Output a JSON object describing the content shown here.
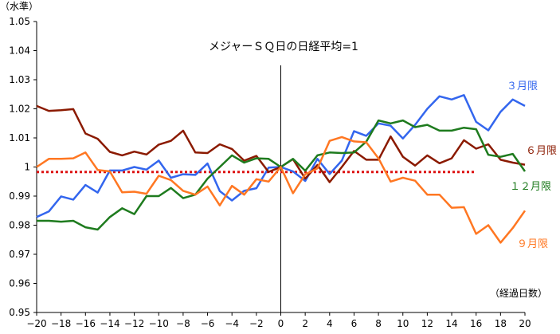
{
  "chart_data": {
    "type": "line",
    "title": "メジャーＳＱ日の日経平均=1",
    "ylabel": "（水準）",
    "xlabel": "（経過日数）",
    "xlim": [
      -20,
      20
    ],
    "ylim": [
      0.95,
      1.05
    ],
    "x_ticks": [
      -20,
      -18,
      -16,
      -14,
      -12,
      -10,
      -8,
      -6,
      -4,
      -2,
      0,
      2,
      4,
      6,
      8,
      10,
      12,
      14,
      16,
      18,
      20
    ],
    "y_ticks": [
      0.95,
      0.96,
      0.97,
      0.98,
      0.99,
      1,
      1.01,
      1.02,
      1.03,
      1.04,
      1.05
    ],
    "y_tick_labels": [
      "0.95",
      "0.96",
      "0.97",
      "0.98",
      "0.99",
      "1",
      "1.01",
      "1.02",
      "1.03",
      "1.04",
      "1.05"
    ],
    "x": [
      -20,
      -19,
      -18,
      -17,
      -16,
      -15,
      -14,
      -13,
      -12,
      -11,
      -10,
      -9,
      -8,
      -7,
      -6,
      -5,
      -4,
      -3,
      -2,
      -1,
      0,
      1,
      2,
      3,
      4,
      5,
      6,
      7,
      8,
      9,
      10,
      11,
      12,
      13,
      14,
      15,
      16,
      17,
      18,
      19,
      20
    ],
    "series": [
      {
        "name": "３月限",
        "color": "#3366ee",
        "values": [
          0.9828,
          0.9847,
          0.9899,
          0.9888,
          0.9938,
          0.9912,
          0.9988,
          0.9988,
          1.0,
          0.9991,
          1.0022,
          0.9963,
          0.9975,
          0.9973,
          1.0012,
          0.9917,
          0.9885,
          0.9918,
          0.9927,
          0.9998,
          1.0,
          0.9985,
          0.9952,
          1.0028,
          0.9976,
          1.0022,
          1.0123,
          1.0107,
          1.015,
          1.0142,
          1.0098,
          1.0145,
          1.02,
          1.0243,
          1.0232,
          1.0247,
          1.0155,
          1.0126,
          1.019,
          1.0232,
          1.021
        ]
      },
      {
        "name": "６月限",
        "color": "#8b1a00",
        "values": [
          1.021,
          1.0193,
          1.0195,
          1.0199,
          1.0115,
          1.0097,
          1.0052,
          1.004,
          1.0053,
          1.0043,
          1.0077,
          1.009,
          1.0125,
          1.005,
          1.0048,
          1.0078,
          1.0062,
          1.0022,
          1.0038,
          0.9983,
          1.0,
          1.0027,
          0.996,
          1.0007,
          0.9948,
          1.0,
          1.0055,
          1.0025,
          1.0025,
          1.0105,
          1.0035,
          1.0005,
          1.004,
          1.0013,
          1.003,
          1.0092,
          1.0063,
          1.0078,
          1.0025,
          1.0015,
          1.0008
        ]
      },
      {
        "name": "１２月限",
        "color": "#1e7b1e",
        "values": [
          0.9815,
          0.9815,
          0.9812,
          0.9815,
          0.9793,
          0.9785,
          0.9828,
          0.9858,
          0.9838,
          0.99,
          0.99,
          0.9928,
          0.9893,
          0.9905,
          0.996,
          1.0,
          1.004,
          1.0015,
          1.003,
          1.0028,
          1.0,
          1.0028,
          0.9987,
          1.004,
          1.005,
          1.0048,
          1.005,
          1.0087,
          1.016,
          1.015,
          1.016,
          1.0137,
          1.0145,
          1.0125,
          1.0125,
          1.0135,
          1.013,
          1.0042,
          1.0035,
          1.0045,
          0.9985
        ]
      },
      {
        "name": "９月限",
        "color": "#ff7722",
        "values": [
          1.0,
          1.0028,
          1.0028,
          1.003,
          1.005,
          0.999,
          0.9985,
          0.9913,
          0.9915,
          0.9908,
          0.997,
          0.9955,
          0.9918,
          0.9905,
          0.9933,
          0.9868,
          0.9935,
          0.9905,
          0.9958,
          0.995,
          1.0,
          0.991,
          0.9975,
          0.9995,
          1.009,
          1.0103,
          1.0088,
          1.0085,
          1.003,
          0.995,
          0.9963,
          0.9953,
          0.9905,
          0.9905,
          0.986,
          0.9862,
          0.977,
          0.98,
          0.974,
          0.979,
          0.985
        ]
      }
    ],
    "reference_line": {
      "y": 0.9983,
      "x_from": -20,
      "x_to": 16,
      "style": "dotted",
      "color": "#dd1111"
    },
    "vertical_line": {
      "x": 0,
      "color": "#000000"
    },
    "grid": false,
    "legend": "inline-right"
  }
}
